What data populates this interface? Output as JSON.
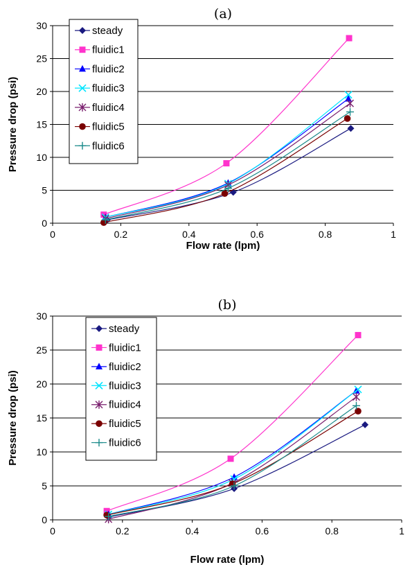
{
  "chart_data": [
    {
      "type": "line",
      "title": "(a)",
      "xlabel": "Flow rate (lpm)",
      "ylabel": "Pressure drop (psi)",
      "xlim": [
        0,
        1
      ],
      "ylim": [
        0,
        30
      ],
      "xticks": [
        0,
        0.2,
        0.4,
        0.6,
        0.8,
        1
      ],
      "xtick_labels": [
        "0",
        "0.2",
        "0.4",
        "0.6",
        "0.8",
        "1"
      ],
      "yticks": [
        0,
        5,
        10,
        15,
        20,
        25,
        30
      ],
      "ytick_labels": [
        "0",
        "5",
        "10",
        "15",
        "20",
        "25",
        "30"
      ],
      "grid": "horizontal",
      "legend_position": "top-left",
      "series": [
        {
          "name": "steady",
          "color": "#1a1a80",
          "marker": "diamond",
          "x": [
            0.16,
            0.53,
            0.875
          ],
          "y": [
            0.5,
            4.7,
            14.4
          ]
        },
        {
          "name": "fluidic1",
          "color": "#ff33cc",
          "marker": "square",
          "x": [
            0.15,
            0.51,
            0.87
          ],
          "y": [
            1.3,
            9.1,
            28.1
          ]
        },
        {
          "name": "fluidic2",
          "color": "#0000ff",
          "marker": "triangle",
          "x": [
            0.155,
            0.515,
            0.868
          ],
          "y": [
            0.9,
            6.1,
            18.9
          ]
        },
        {
          "name": "fluidic3",
          "color": "#00e5ff",
          "marker": "x",
          "x": [
            0.155,
            0.515,
            0.868
          ],
          "y": [
            0.9,
            6.0,
            19.5
          ]
        },
        {
          "name": "fluidic4",
          "color": "#7a1f6e",
          "marker": "star",
          "x": [
            0.155,
            0.515,
            0.873
          ],
          "y": [
            0.7,
            5.8,
            18.2
          ]
        },
        {
          "name": "fluidic5",
          "color": "#7a0000",
          "marker": "circle",
          "x": [
            0.15,
            0.505,
            0.865
          ],
          "y": [
            0.1,
            4.5,
            15.9
          ]
        },
        {
          "name": "fluidic6",
          "color": "#1a8a8a",
          "marker": "plus",
          "x": [
            0.155,
            0.515,
            0.873
          ],
          "y": [
            0.5,
            5.3,
            16.9
          ]
        }
      ]
    },
    {
      "type": "line",
      "title": "(b)",
      "xlabel": "Flow rate (lpm)",
      "ylabel": "Pressure drop (psi)",
      "xlim": [
        0,
        1
      ],
      "ylim": [
        0,
        30
      ],
      "xticks": [
        0,
        0.2,
        0.4,
        0.6,
        0.8,
        1
      ],
      "xtick_labels": [
        "0",
        "0.2",
        "0.4",
        "0.6",
        "0.8",
        "1"
      ],
      "yticks": [
        0,
        5,
        10,
        15,
        20,
        25,
        30
      ],
      "ytick_labels": [
        "0",
        "5",
        "10",
        "15",
        "20",
        "25",
        "30"
      ],
      "grid": "horizontal",
      "legend_position": "top-left",
      "series": [
        {
          "name": "steady",
          "color": "#1a1a80",
          "marker": "diamond",
          "x": [
            0.16,
            0.52,
            0.895
          ],
          "y": [
            0.4,
            4.6,
            14.0
          ]
        },
        {
          "name": "fluidic1",
          "color": "#ff33cc",
          "marker": "square",
          "x": [
            0.155,
            0.51,
            0.875
          ],
          "y": [
            1.3,
            9.0,
            27.2
          ]
        },
        {
          "name": "fluidic2",
          "color": "#0000ff",
          "marker": "triangle",
          "x": [
            0.16,
            0.52,
            0.87
          ],
          "y": [
            0.8,
            6.3,
            19.0
          ]
        },
        {
          "name": "fluidic3",
          "color": "#00e5ff",
          "marker": "x",
          "x": [
            0.16,
            0.52,
            0.875
          ],
          "y": [
            0.8,
            6.0,
            19.2
          ]
        },
        {
          "name": "fluidic4",
          "color": "#7a1f6e",
          "marker": "star",
          "x": [
            0.16,
            0.515,
            0.87
          ],
          "y": [
            0.1,
            5.4,
            18.1
          ]
        },
        {
          "name": "fluidic5",
          "color": "#7a0000",
          "marker": "circle",
          "x": [
            0.155,
            0.515,
            0.875
          ],
          "y": [
            0.7,
            5.3,
            16.0
          ]
        },
        {
          "name": "fluidic6",
          "color": "#1a8a8a",
          "marker": "plus",
          "x": [
            0.16,
            0.52,
            0.87
          ],
          "y": [
            0.5,
            5.0,
            16.8
          ]
        }
      ]
    }
  ]
}
